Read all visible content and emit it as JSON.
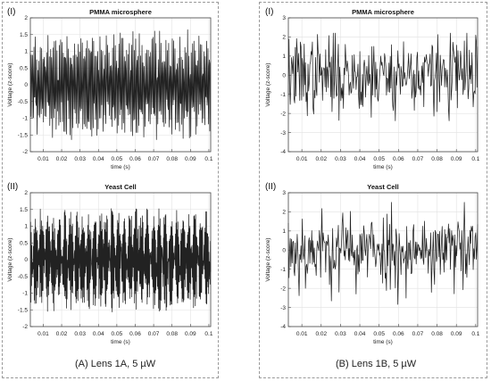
{
  "figure": {
    "left_caption": "(A) Lens 1A, 5 µW",
    "right_caption": "(B) Lens 1B, 5 µW"
  },
  "chart_data": [
    {
      "type": "line",
      "panel_label": "(I)",
      "title": "PMMA microsphere",
      "xlabel": "time (s)",
      "ylabel": "Voltage (z-score)",
      "xlim": [
        0.003,
        0.101
      ],
      "ylim": [
        -2,
        2
      ],
      "xticks": [
        0.01,
        0.02,
        0.03,
        0.04,
        0.05,
        0.06,
        0.07,
        0.08,
        0.09,
        0.1
      ],
      "xtick_labels": [
        "0.01",
        "0.02",
        "0.03",
        "0.04",
        "0.05",
        "0.06",
        "0.07",
        "0.08",
        "0.09",
        "0.1"
      ],
      "yticks": [
        -2,
        -1.5,
        -1,
        -0.5,
        0,
        0.5,
        1,
        1.5,
        2
      ],
      "ytick_labels": [
        "-2",
        "-1.5",
        "-1",
        "-0.5",
        "0",
        "0.5",
        "1",
        "1.5",
        "2"
      ],
      "grid": true,
      "color": "#222222",
      "series": [
        {
          "signal": "dense periodic oscillation",
          "samples": 400,
          "cycles_per_second": 1450,
          "amplitude_min": 0.9,
          "amplitude_max": 1.65,
          "seed": 11
        }
      ]
    },
    {
      "type": "line",
      "panel_label": "(II)",
      "title": "Yeast Cell",
      "xlabel": "time (s)",
      "ylabel": "Voltage (z-score)",
      "xlim": [
        0.003,
        0.101
      ],
      "ylim": [
        -2,
        2
      ],
      "xticks": [
        0.01,
        0.02,
        0.03,
        0.04,
        0.05,
        0.06,
        0.07,
        0.08,
        0.09,
        0.1
      ],
      "xtick_labels": [
        "0.01",
        "0.02",
        "0.03",
        "0.04",
        "0.05",
        "0.06",
        "0.07",
        "0.08",
        "0.09",
        "0.1"
      ],
      "yticks": [
        -2,
        -1.5,
        -1,
        -0.5,
        0,
        0.5,
        1,
        1.5,
        2
      ],
      "ytick_labels": [
        "-2",
        "-1.5",
        "-1",
        "-0.5",
        "0",
        "0.5",
        "1",
        "1.5",
        "2"
      ],
      "grid": true,
      "color": "#222222",
      "series": [
        {
          "signal": "dense noisy oscillation",
          "samples": 600,
          "cycles_per_second": 2900,
          "amplitude_min": 0.8,
          "amplitude_max": 1.6,
          "seed": 23
        }
      ]
    },
    {
      "type": "line",
      "panel_label": "(I)",
      "title": "PMMA microsphere",
      "xlabel": "time (s)",
      "ylabel": "Voltage (z-score)",
      "xlim": [
        0.003,
        0.101
      ],
      "ylim": [
        -4,
        3
      ],
      "xticks": [
        0.01,
        0.02,
        0.03,
        0.04,
        0.05,
        0.06,
        0.07,
        0.08,
        0.09,
        0.1
      ],
      "xtick_labels": [
        "0.01",
        "0.02",
        "0.03",
        "0.04",
        "0.05",
        "0.06",
        "0.07",
        "0.08",
        "0.09",
        "0.1"
      ],
      "yticks": [
        -4,
        -3,
        -2,
        -1,
        0,
        1,
        2,
        3
      ],
      "ytick_labels": [
        "-4",
        "-3",
        "-2",
        "-1",
        "0",
        "1",
        "2",
        "3"
      ],
      "grid": true,
      "color": "#222222",
      "series": [
        {
          "signal": "irregular random spikes",
          "samples": 300,
          "sigma": 1.0,
          "peak_max": 2.2,
          "peak_min": -3.3,
          "seed": 37
        }
      ]
    },
    {
      "type": "line",
      "panel_label": "(II)",
      "title": "Yeast Cell",
      "xlabel": "time (s)",
      "ylabel": "Voltage (z-score)",
      "xlim": [
        0.003,
        0.101
      ],
      "ylim": [
        -4,
        3
      ],
      "xticks": [
        0.01,
        0.02,
        0.03,
        0.04,
        0.05,
        0.06,
        0.07,
        0.08,
        0.09,
        0.1
      ],
      "xtick_labels": [
        "0.01",
        "0.02",
        "0.03",
        "0.04",
        "0.05",
        "0.06",
        "0.07",
        "0.08",
        "0.09",
        "0.1"
      ],
      "yticks": [
        -4,
        -3,
        -2,
        -1,
        0,
        1,
        2,
        3
      ],
      "ytick_labels": [
        "-4",
        "-3",
        "-2",
        "-1",
        "0",
        "1",
        "2",
        "3"
      ],
      "grid": true,
      "color": "#222222",
      "series": [
        {
          "signal": "irregular random spikes",
          "samples": 300,
          "sigma": 1.0,
          "peak_max": 2.5,
          "peak_min": -3.3,
          "seed": 53
        }
      ]
    }
  ]
}
